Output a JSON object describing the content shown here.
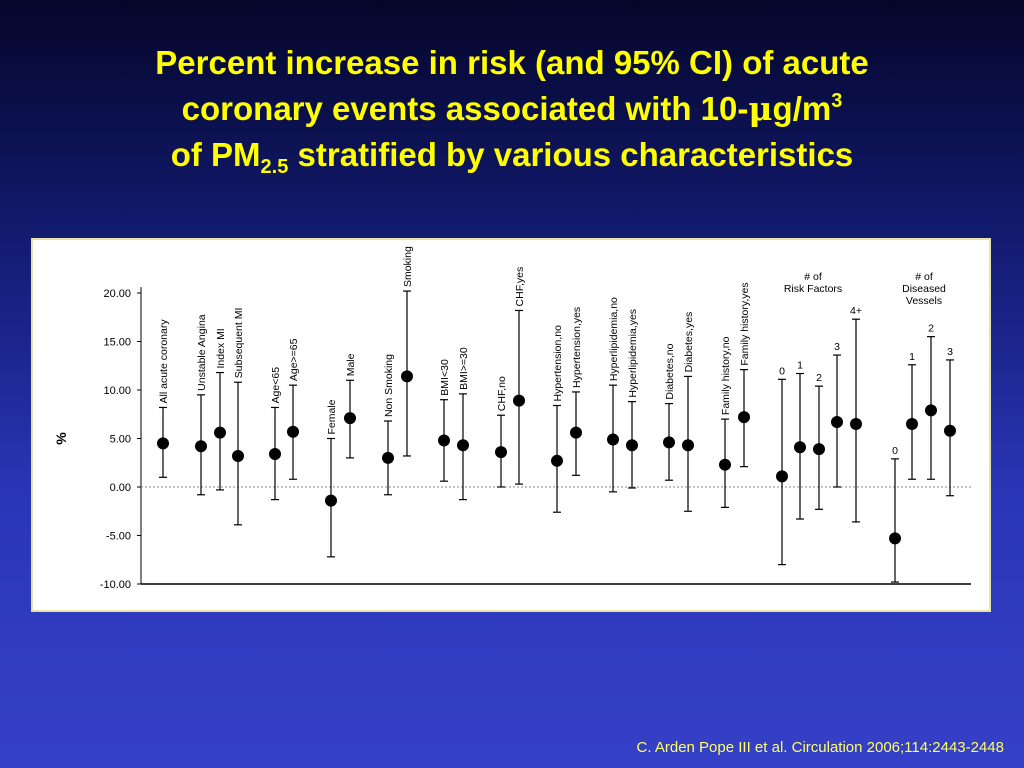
{
  "slide": {
    "title_line1": "Percent increase in risk (and 95% CI) of acute",
    "title_line2_pre": "coronary events associated with 10-",
    "title_mu": "μ",
    "title_line2_post": "g/m",
    "title_line2_sup": "3",
    "title_line3_pre": "of PM",
    "title_line3_sub": "2.5",
    "title_line3_post": " stratified by various characteristics",
    "citation": "C. Arden Pope III et al. Circulation 2006;114:2443-2448"
  },
  "colors": {
    "title": "#ffff00",
    "citation": "#ffff66",
    "background_top": "#05062a",
    "background_bottom": "#3540c8",
    "panel_border": "#e8e4a8"
  },
  "chart_data": {
    "type": "scatter",
    "style": "point estimate with 95% confidence interval error bars",
    "ylabel": "%",
    "ylim": [
      -10,
      20
    ],
    "yticks": [
      "20.00",
      "15.00",
      "10.00",
      "5.00",
      "0.00",
      "-5.00",
      "-10.00"
    ],
    "reference_line": 0,
    "group_headers": [
      {
        "line1": "# of",
        "line2": "Risk Factors",
        "line3": ""
      },
      {
        "line1": "# of",
        "line2": "Diseased",
        "line3": "Vessels"
      }
    ],
    "points": [
      {
        "label": "All acute coronary",
        "value": 4.5,
        "low": 1.0,
        "high": 8.2
      },
      {
        "label": "Unstable Angina",
        "value": 4.2,
        "low": -0.8,
        "high": 9.5
      },
      {
        "label": "Index MI",
        "value": 5.6,
        "low": -0.3,
        "high": 11.8
      },
      {
        "label": "Subsequent MI",
        "value": 3.2,
        "low": -3.9,
        "high": 10.8
      },
      {
        "label": "Age<65",
        "value": 3.4,
        "low": -1.3,
        "high": 8.2
      },
      {
        "label": "Age>=65",
        "value": 5.7,
        "low": 0.8,
        "high": 10.5
      },
      {
        "label": "Female",
        "value": -1.4,
        "low": -7.2,
        "high": 5.0
      },
      {
        "label": "Male",
        "value": 7.1,
        "low": 3.0,
        "high": 11.0
      },
      {
        "label": "Non Smoking",
        "value": 3.0,
        "low": -0.8,
        "high": 6.8
      },
      {
        "label": "Smoking",
        "value": 11.4,
        "low": 3.2,
        "high": 20.2
      },
      {
        "label": "BMI<30",
        "value": 4.8,
        "low": 0.6,
        "high": 9.0
      },
      {
        "label": "BMI>=30",
        "value": 4.3,
        "low": -1.3,
        "high": 9.6
      },
      {
        "label": "CHF,no",
        "value": 3.6,
        "low": 0.0,
        "high": 7.4
      },
      {
        "label": "CHF,yes",
        "value": 8.9,
        "low": 0.3,
        "high": 18.2
      },
      {
        "label": "Hypertension,no",
        "value": 2.7,
        "low": -2.6,
        "high": 8.4
      },
      {
        "label": "Hypertension,yes",
        "value": 5.6,
        "low": 1.2,
        "high": 9.8
      },
      {
        "label": "Hyperlipidemia,no",
        "value": 4.9,
        "low": -0.5,
        "high": 10.5
      },
      {
        "label": "Hyperlipidemia,yes",
        "value": 4.3,
        "low": -0.1,
        "high": 8.8
      },
      {
        "label": "Diabetes,no",
        "value": 4.6,
        "low": 0.7,
        "high": 8.6
      },
      {
        "label": "Diabetes,yes",
        "value": 4.3,
        "low": -2.5,
        "high": 11.4
      },
      {
        "label": "Family history,no",
        "value": 2.3,
        "low": -2.1,
        "high": 7.0
      },
      {
        "label": "Family history,yes",
        "value": 7.2,
        "low": 2.1,
        "high": 12.1
      },
      {
        "label": "0",
        "value": 1.1,
        "low": -8.0,
        "high": 11.1
      },
      {
        "label": "1",
        "value": 4.1,
        "low": -3.3,
        "high": 11.7
      },
      {
        "label": "2",
        "value": 3.9,
        "low": -2.3,
        "high": 10.4
      },
      {
        "label": "3",
        "value": 6.7,
        "low": 0.0,
        "high": 13.6
      },
      {
        "label": "4+",
        "value": 6.5,
        "low": -3.6,
        "high": 17.3
      },
      {
        "label": "0",
        "value": -5.3,
        "low": -9.8,
        "high": 2.9
      },
      {
        "label": "1",
        "value": 6.5,
        "low": 0.8,
        "high": 12.6
      },
      {
        "label": "2",
        "value": 7.9,
        "low": 0.8,
        "high": 15.5
      },
      {
        "label": "3",
        "value": 5.8,
        "low": -0.9,
        "high": 13.1
      }
    ]
  }
}
